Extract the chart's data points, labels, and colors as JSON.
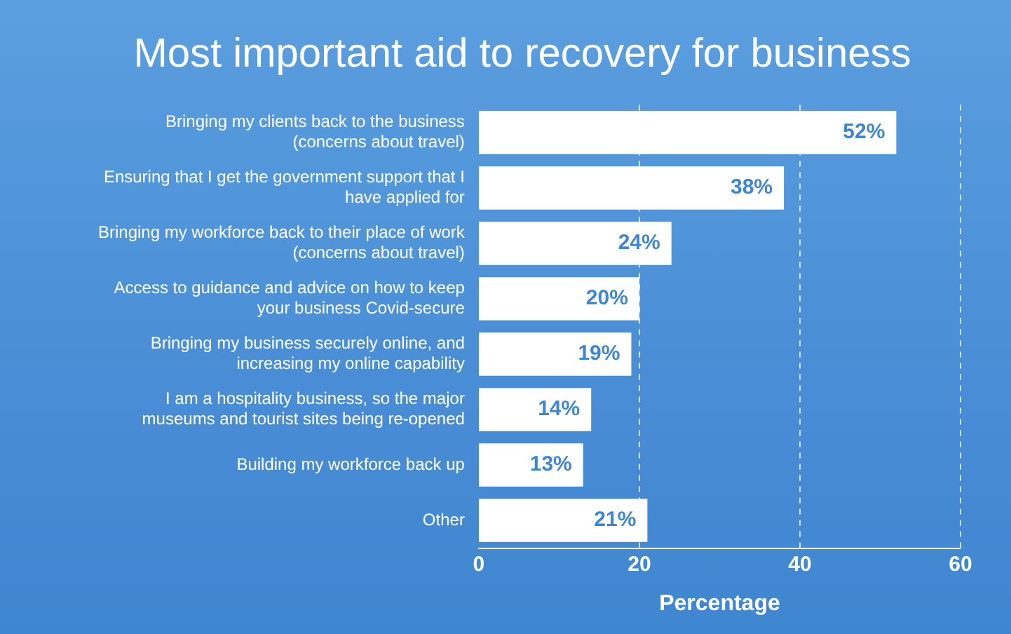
{
  "chart_data": {
    "type": "bar",
    "orientation": "horizontal",
    "title": "Most important aid to recovery for business",
    "xlabel": "Percentage",
    "categories": [
      "Bringing my clients back to the business (concerns about travel)",
      "Ensuring that I get the government support that I have applied for",
      "Bringing my workforce back to their place of work (concerns about travel)",
      "Access to guidance and advice on how to keep your business Covid-secure",
      "Bringing my business securely online, and increasing my online capability",
      "I am a hospitality business, so the major museums and tourist sites being re-opened",
      "Building my workforce back up",
      "Other"
    ],
    "values": [
      52,
      38,
      24,
      20,
      19,
      14,
      13,
      21
    ],
    "value_labels": [
      "52%",
      "38%",
      "24%",
      "20%",
      "19%",
      "14%",
      "13%",
      "21%"
    ],
    "color": "#ffffff",
    "xlim": [
      0,
      60
    ],
    "xticks": [
      0,
      20,
      40,
      60
    ],
    "grid": "x",
    "legend": false
  }
}
